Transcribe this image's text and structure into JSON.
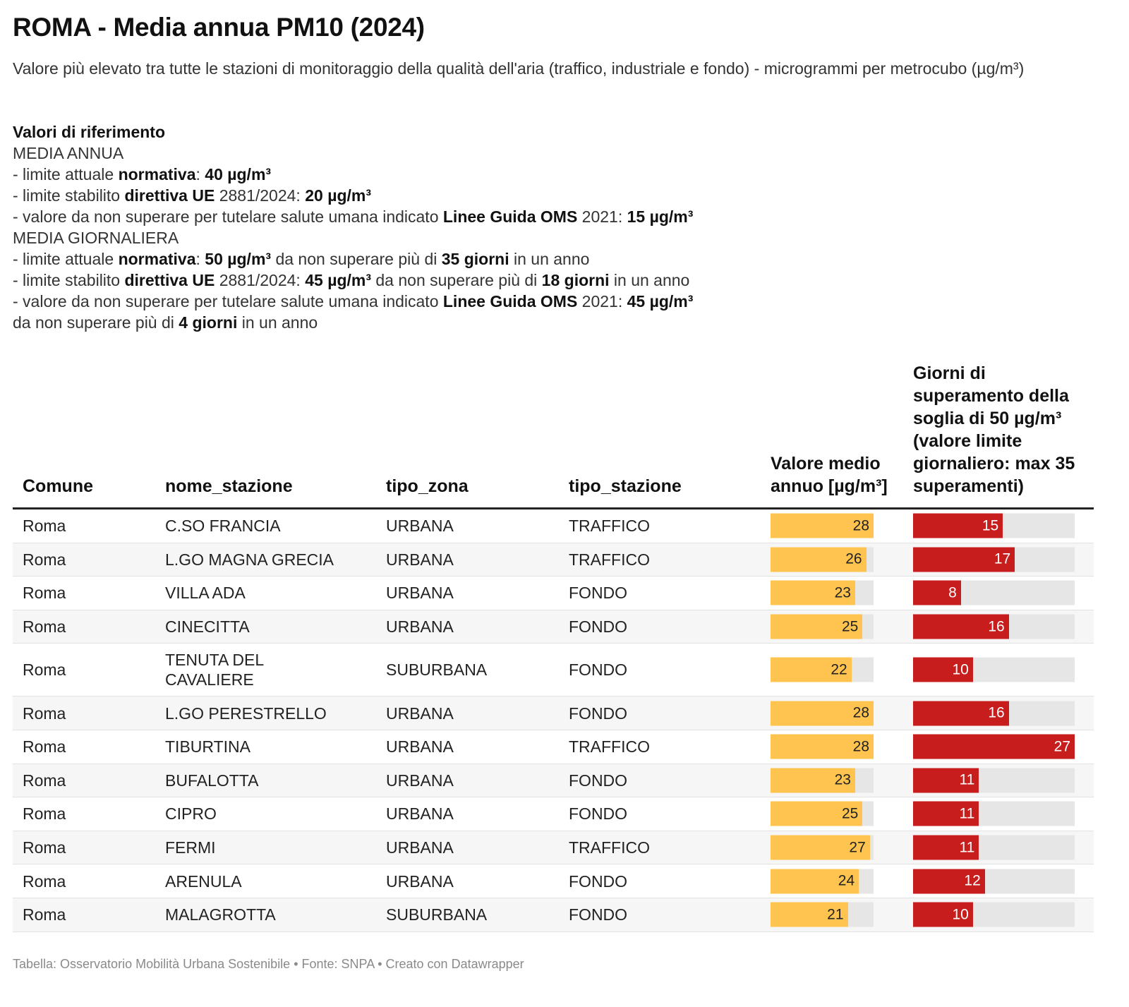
{
  "title": "ROMA - Media annua PM10 (2024)",
  "subtitle": "Valore più elevato tra tutte le stazioni di monitoraggio della qualità dell'aria (traffico, industriale e fondo) - microgrammi per metrocubo (µg/m³)",
  "references": {
    "heading": "Valori di riferimento",
    "annual_heading": "MEDIA ANNUA",
    "annual": [
      {
        "pre": "- limite attuale ",
        "b1": "normativa",
        "mid": ": ",
        "b2": "40 µg/m³",
        "post": ""
      },
      {
        "pre": "- limite stabilito ",
        "b1": "direttiva UE",
        "mid": " 2881/2024: ",
        "b2": "20 µg/m³",
        "post": ""
      },
      {
        "pre": "- valore da non superare per tutelare salute umana indicato ",
        "b1": "Linee Guida OMS",
        "mid": " 2021: ",
        "b2": "15 µg/m³",
        "post": ""
      }
    ],
    "daily_heading": "MEDIA GIORNALIERA",
    "daily": [
      {
        "pre": "- limite attuale ",
        "b1": "normativa",
        "mid": ": ",
        "b2": "50 µg/m³",
        "mid2": " da non superare più di ",
        "b3": "35 giorni",
        "post": " in un anno"
      },
      {
        "pre": "- limite stabilito ",
        "b1": "direttiva UE",
        "mid": " 2881/2024: ",
        "b2": "45 µg/m³",
        "mid2": " da non superare più di ",
        "b3": "18 giorni",
        "post": " in un anno"
      },
      {
        "pre": "- valore da non superare per tutelare salute umana indicato ",
        "b1": "Linee Guida OMS",
        "mid": " 2021: ",
        "b2": "45 µg/m³",
        "mid2": "",
        "b3": "",
        "post": ""
      }
    ],
    "daily_last": {
      "pre": "da non superare più di ",
      "b1": "4 giorni",
      "post": " in un anno"
    }
  },
  "table": {
    "columns": [
      "Comune",
      "nome_stazione",
      "tipo_zona",
      "tipo_stazione",
      "Valore medio annuo [µg/m³]",
      "Giorni di superamento della soglia di 50 µg/m³ (valore limite giornaliero: max 35 superamenti)"
    ],
    "bar_colors": {
      "annual": "#fec44f",
      "days": "#c71e1d",
      "track": "#e6e6e6"
    }
  },
  "chart_data": {
    "type": "table",
    "annual_max": 28,
    "days_max": 27,
    "rows": [
      {
        "comune": "Roma",
        "stazione": "C.SO FRANCIA",
        "zona": "URBANA",
        "tipo": "TRAFFICO",
        "media": 28,
        "giorni": 15
      },
      {
        "comune": "Roma",
        "stazione": "L.GO MAGNA GRECIA",
        "zona": "URBANA",
        "tipo": "TRAFFICO",
        "media": 26,
        "giorni": 17
      },
      {
        "comune": "Roma",
        "stazione": "VILLA ADA",
        "zona": "URBANA",
        "tipo": "FONDO",
        "media": 23,
        "giorni": 8
      },
      {
        "comune": "Roma",
        "stazione": "CINECITTA",
        "zona": "URBANA",
        "tipo": "FONDO",
        "media": 25,
        "giorni": 16
      },
      {
        "comune": "Roma",
        "stazione": "TENUTA DEL CAVALIERE",
        "zona": "SUBURBANA",
        "tipo": "FONDO",
        "media": 22,
        "giorni": 10
      },
      {
        "comune": "Roma",
        "stazione": "L.GO PERESTRELLO",
        "zona": "URBANA",
        "tipo": "FONDO",
        "media": 28,
        "giorni": 16
      },
      {
        "comune": "Roma",
        "stazione": "TIBURTINA",
        "zona": "URBANA",
        "tipo": "TRAFFICO",
        "media": 28,
        "giorni": 27
      },
      {
        "comune": "Roma",
        "stazione": "BUFALOTTA",
        "zona": "URBANA",
        "tipo": "FONDO",
        "media": 23,
        "giorni": 11
      },
      {
        "comune": "Roma",
        "stazione": "CIPRO",
        "zona": "URBANA",
        "tipo": "FONDO",
        "media": 25,
        "giorni": 11
      },
      {
        "comune": "Roma",
        "stazione": "FERMI",
        "zona": "URBANA",
        "tipo": "TRAFFICO",
        "media": 27,
        "giorni": 11
      },
      {
        "comune": "Roma",
        "stazione": "ARENULA",
        "zona": "URBANA",
        "tipo": "FONDO",
        "media": 24,
        "giorni": 12
      },
      {
        "comune": "Roma",
        "stazione": "MALAGROTTA",
        "zona": "SUBURBANA",
        "tipo": "FONDO",
        "media": 21,
        "giorni": 10
      }
    ]
  },
  "footer": "Tabella: Osservatorio Mobilità Urbana Sostenibile • Fonte: SNPA • Creato con Datawrapper"
}
